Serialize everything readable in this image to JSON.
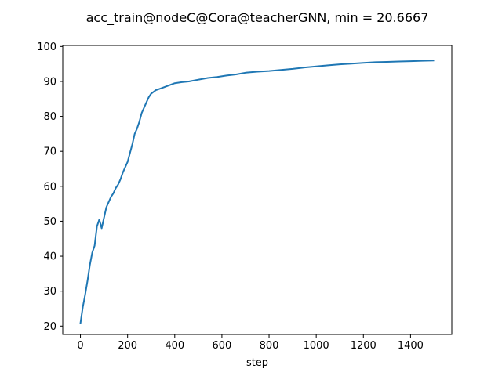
{
  "chart_data": {
    "type": "line",
    "title": "acc_train@nodeC@Cora@teacherGNN, min = 20.6667",
    "xlabel": "step",
    "ylabel": "",
    "xlim": [
      -75,
      1575
    ],
    "ylim": [
      17.6,
      100.3
    ],
    "xticks": [
      0,
      200,
      400,
      600,
      800,
      1000,
      1200,
      1400
    ],
    "yticks": [
      20,
      30,
      40,
      50,
      60,
      70,
      80,
      90,
      100
    ],
    "grid": false,
    "line_color": "#1f77b4",
    "series": [
      {
        "x": [
          0,
          10,
          20,
          30,
          40,
          50,
          60,
          70,
          80,
          90,
          100,
          110,
          120,
          130,
          140,
          150,
          160,
          170,
          180,
          190,
          200,
          210,
          220,
          230,
          240,
          250,
          260,
          270,
          280,
          290,
          300,
          320,
          340,
          360,
          380,
          400,
          430,
          460,
          500,
          540,
          580,
          620,
          660,
          700,
          750,
          800,
          850,
          900,
          950,
          1000,
          1050,
          1100,
          1150,
          1200,
          1250,
          1300,
          1350,
          1400,
          1450,
          1500
        ],
        "y": [
          20.7,
          25.5,
          29.0,
          33.0,
          37.5,
          41.0,
          43.0,
          48.5,
          50.5,
          48.0,
          51.0,
          54.0,
          55.5,
          57.0,
          58.0,
          59.5,
          60.5,
          62.0,
          64.0,
          65.5,
          67.0,
          69.5,
          72.0,
          75.0,
          76.5,
          78.5,
          81.0,
          82.5,
          84.0,
          85.5,
          86.5,
          87.5,
          88.0,
          88.5,
          89.0,
          89.5,
          89.8,
          90.0,
          90.5,
          91.0,
          91.3,
          91.7,
          92.0,
          92.5,
          92.8,
          93.0,
          93.3,
          93.6,
          94.0,
          94.3,
          94.6,
          94.9,
          95.1,
          95.3,
          95.5,
          95.6,
          95.7,
          95.8,
          95.9,
          96.0
        ]
      }
    ]
  }
}
